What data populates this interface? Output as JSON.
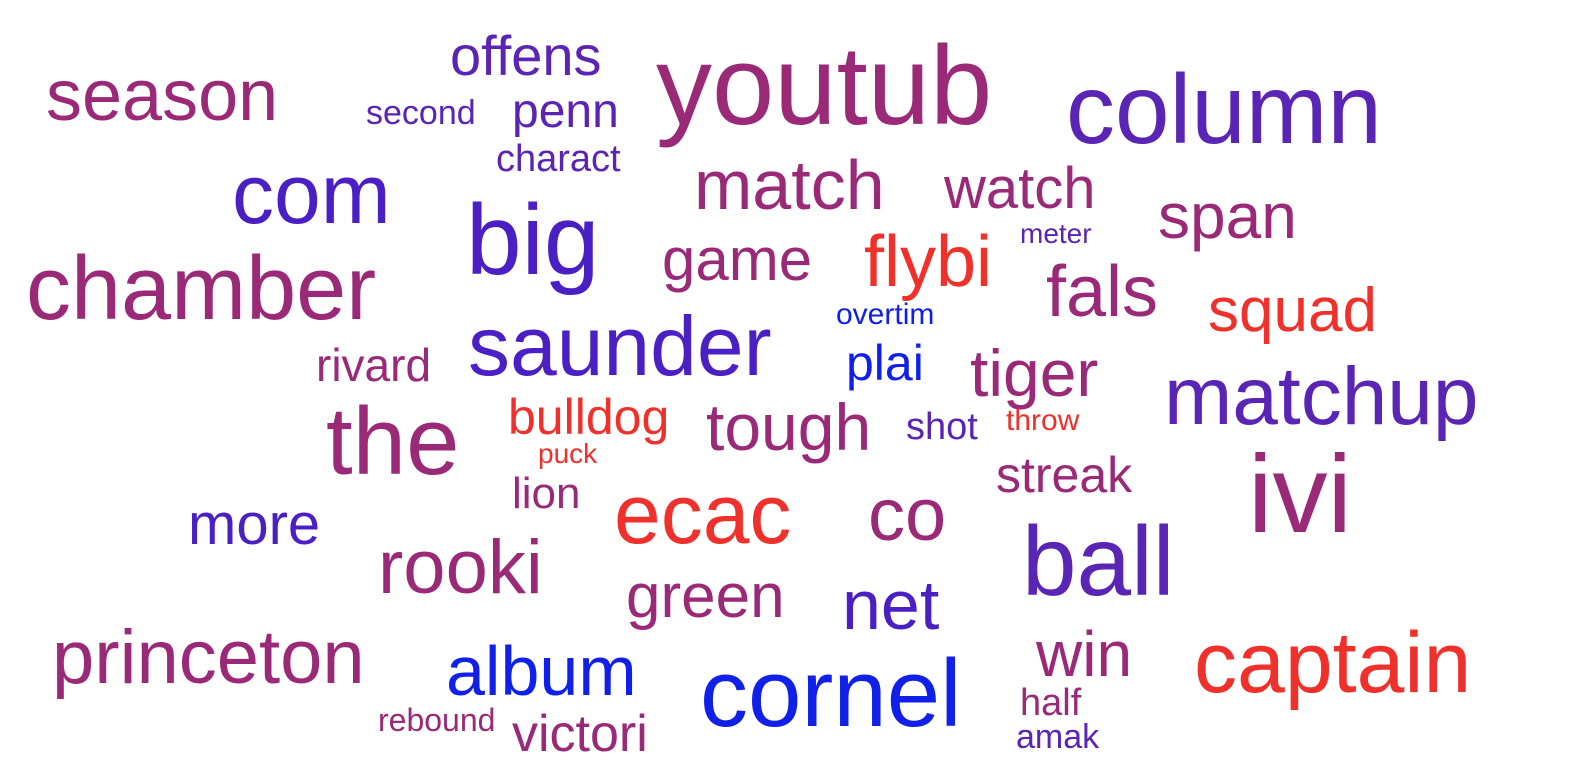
{
  "words": {
    "season": "season",
    "offens": "offens",
    "second": "second",
    "penn": "penn",
    "youtub": "youtub",
    "column": "column",
    "charact": "charact",
    "com": "com",
    "big": "big",
    "match": "match",
    "watch": "watch",
    "span": "span",
    "meter": "meter",
    "chamber": "chamber",
    "game": "game",
    "flybi": "flybi",
    "fals": "fals",
    "squad": "squad",
    "overtim": "overtim",
    "saunder": "saunder",
    "rivard": "rivard",
    "plai": "plai",
    "tiger": "tiger",
    "matchup": "matchup",
    "the": "the",
    "bulldog": "bulldog",
    "tough": "tough",
    "shot": "shot",
    "throw": "throw",
    "puck": "puck",
    "streak": "streak",
    "ivi": "ivi",
    "lion": "lion",
    "more": "more",
    "ecac": "ecac",
    "co": "co",
    "rooki": "rooki",
    "ball": "ball",
    "green": "green",
    "net": "net",
    "princeton": "princeton",
    "album": "album",
    "win": "win",
    "captain": "captain",
    "cornel": "cornel",
    "half": "half",
    "rebound": "rebound",
    "victori": "victori",
    "amak": "amak"
  }
}
